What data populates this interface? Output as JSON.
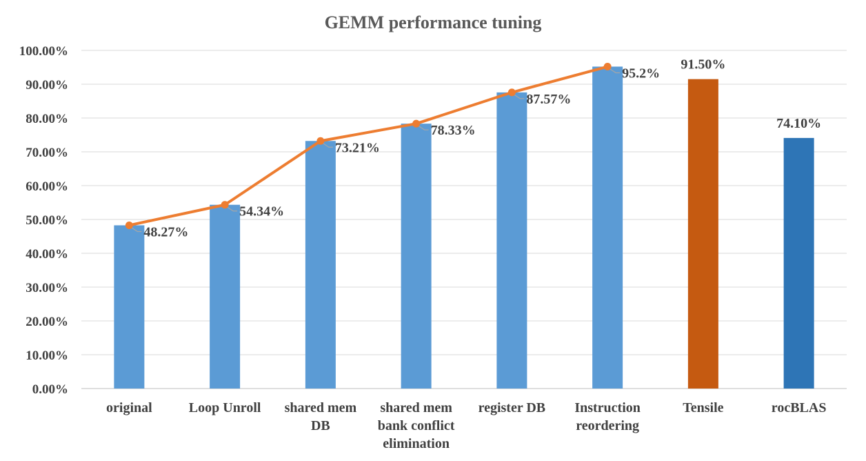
{
  "chart_data": {
    "type": "bar",
    "title": "GEMM performance tuning",
    "xlabel": "",
    "ylabel": "",
    "ylim": [
      0,
      100
    ],
    "y_ticks": [
      "0.00%",
      "10.00%",
      "20.00%",
      "30.00%",
      "40.00%",
      "50.00%",
      "60.00%",
      "70.00%",
      "80.00%",
      "90.00%",
      "100.00%"
    ],
    "grid": true,
    "legend": "none",
    "categories": [
      [
        "original"
      ],
      [
        "Loop Unroll"
      ],
      [
        "shared mem",
        "DB"
      ],
      [
        "shared mem",
        "bank conflict",
        "elimination"
      ],
      [
        "register DB"
      ],
      [
        "Instruction",
        "reordering"
      ],
      [
        "Tensile"
      ],
      [
        "rocBLAS"
      ]
    ],
    "bars": [
      {
        "value": 48.27,
        "color": "#5b9bd5"
      },
      {
        "value": 54.34,
        "color": "#5b9bd5"
      },
      {
        "value": 73.21,
        "color": "#5b9bd5"
      },
      {
        "value": 78.33,
        "color": "#5b9bd5"
      },
      {
        "value": 87.57,
        "color": "#5b9bd5"
      },
      {
        "value": 95.2,
        "color": "#5b9bd5"
      },
      {
        "value": 91.5,
        "color": "#c55a11",
        "label": "91.50%"
      },
      {
        "value": 74.1,
        "color": "#2e75b6",
        "label": "74.10%"
      }
    ],
    "line": {
      "color": "#ed7d31",
      "values": [
        48.27,
        54.34,
        73.21,
        78.33,
        87.57,
        95.2
      ],
      "labels": [
        "48.27%",
        "54.34%",
        "73.21%",
        "78.33%",
        "87.57%",
        "95.2%"
      ]
    }
  }
}
